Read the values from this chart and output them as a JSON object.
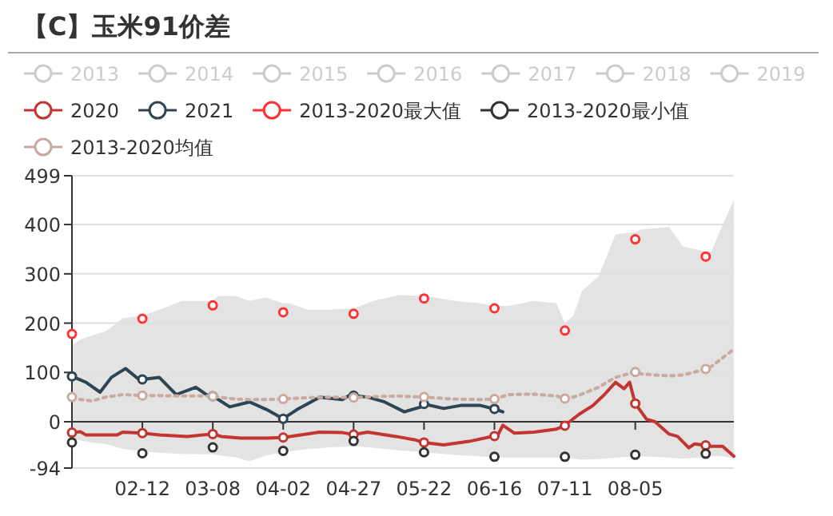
{
  "chart_data": {
    "type": "line",
    "title": "【C】玉米91价差",
    "legend": "top",
    "grid": "y",
    "xlim": [
      "--01-18",
      "--09-09"
    ],
    "xticks": [
      {
        "value": "--02-12",
        "label": "02-12"
      },
      {
        "value": "--03-08",
        "label": "03-08"
      },
      {
        "value": "--04-02",
        "label": "04-02"
      },
      {
        "value": "--04-27",
        "label": "04-27"
      },
      {
        "value": "--05-22",
        "label": "05-22"
      },
      {
        "value": "--06-16",
        "label": "06-16"
      },
      {
        "value": "--07-11",
        "label": "07-11"
      },
      {
        "value": "--08-05",
        "label": "08-05"
      }
    ],
    "ylim": [
      -94,
      499
    ],
    "yticks": [
      -94,
      0,
      100,
      200,
      300,
      400,
      499
    ],
    "series": [
      {
        "name": "2013",
        "color": "#cccccc"
      },
      {
        "name": "2014",
        "color": "#cccccc"
      },
      {
        "name": "2015",
        "color": "#cccccc"
      },
      {
        "name": "2016",
        "color": "#cccccc"
      },
      {
        "name": "2017",
        "color": "#cccccc"
      },
      {
        "name": "2018",
        "color": "#cccccc"
      },
      {
        "name": "2019",
        "color": "#cccccc"
      },
      {
        "name": "2020",
        "color": "#c23531",
        "x": [
          "--01-18",
          "--01-21",
          "--01-23",
          "--02-03",
          "--02-05",
          "--02-12",
          "--02-18",
          "--02-28",
          "--03-08",
          "--03-11",
          "--03-18",
          "--03-27",
          "--04-02",
          "--04-15",
          "--04-23",
          "--04-27",
          "--05-02",
          "--05-12",
          "--05-19",
          "--05-22",
          "--05-29",
          "--06-07",
          "--06-16",
          "--06-17",
          "--06-19",
          "--06-23",
          "--06-30",
          "--07-08",
          "--07-11",
          "--07-12",
          "--07-16",
          "--07-21",
          "--07-25",
          "--07-29",
          "--08-01",
          "--08-03",
          "--08-05",
          "--08-09",
          "--08-12",
          "--08-17",
          "--08-20",
          "--08-24",
          "--08-26",
          "--08-30",
          "--09-01",
          "--09-05",
          "--09-09"
        ],
        "values": [
          -22,
          -20,
          -27,
          -27,
          -21,
          -23,
          -27,
          -30,
          -25,
          -30,
          -33,
          -33,
          -32,
          -21,
          -22,
          -26,
          -21,
          -30,
          -37,
          -42,
          -47,
          -40,
          -29,
          -30,
          -7,
          -23,
          -21,
          -15,
          -8,
          -3,
          15,
          33,
          55,
          80,
          67,
          80,
          37,
          5,
          0,
          -25,
          -30,
          -53,
          -45,
          -48,
          -50,
          -50,
          -70
        ]
      },
      {
        "name": "2021",
        "color": "#2f4554",
        "x": [
          "--01-18",
          "--01-23",
          "--01-28",
          "--02-01",
          "--02-06",
          "--02-11",
          "--02-12",
          "--02-18",
          "--02-24",
          "--03-02",
          "--03-07",
          "--03-08",
          "--03-14",
          "--03-21",
          "--03-27",
          "--04-02",
          "--04-07",
          "--04-15",
          "--04-23",
          "--04-26",
          "--04-27",
          "--05-02",
          "--05-08",
          "--05-15",
          "--05-21",
          "--05-22",
          "--05-29",
          "--06-04",
          "--06-11",
          "--06-16",
          "--06-19"
        ],
        "values": [
          92,
          80,
          60,
          90,
          108,
          85,
          86,
          90,
          55,
          70,
          50,
          52,
          30,
          40,
          25,
          6,
          25,
          50,
          45,
          55,
          53,
          50,
          40,
          20,
          30,
          36,
          27,
          33,
          33,
          26,
          20
        ]
      },
      {
        "name": "2013-2020最大值",
        "type": "scatter",
        "marker": "circle",
        "color": "#ff3333",
        "x": [
          "--01-18",
          "--02-12",
          "--03-08",
          "--04-02",
          "--04-27",
          "--05-22",
          "--06-16",
          "--07-11",
          "--08-05",
          "--08-30"
        ],
        "values": [
          178,
          209,
          236,
          222,
          219,
          250,
          230,
          185,
          370,
          335
        ]
      },
      {
        "name": "2013-2020最小值",
        "type": "scatter",
        "marker": "circle",
        "color": "#333333",
        "x": [
          "--01-18",
          "--02-12",
          "--03-08",
          "--04-02",
          "--04-27",
          "--05-22",
          "--06-16",
          "--07-11",
          "--08-05",
          "--08-30"
        ],
        "values": [
          -42,
          -64,
          -52,
          -59,
          -39,
          -62,
          -71,
          -71,
          -67,
          -65
        ]
      },
      {
        "name": "2013-2020均值",
        "color": "#c9aaa2",
        "line_style": "dotted",
        "x": [
          "--01-18",
          "--01-21",
          "--01-25",
          "--01-30",
          "--02-05",
          "--02-12",
          "--02-18",
          "--02-26",
          "--03-04",
          "--03-08",
          "--03-10",
          "--03-16",
          "--03-21",
          "--03-27",
          "--04-02",
          "--04-04",
          "--04-11",
          "--04-19",
          "--04-27",
          "--05-04",
          "--05-13",
          "--05-22",
          "--06-02",
          "--06-11",
          "--06-16",
          "--06-21",
          "--06-30",
          "--07-08",
          "--07-11",
          "--07-14",
          "--07-17",
          "--07-23",
          "--07-29",
          "--08-05",
          "--08-07",
          "--08-17",
          "--08-22",
          "--08-30",
          "--09-01",
          "--09-05",
          "--09-09"
        ],
        "values": [
          50,
          45,
          42,
          50,
          55,
          53,
          53,
          52,
          52,
          52,
          50,
          46,
          45,
          45,
          46,
          47,
          49,
          50,
          49,
          51,
          52,
          50,
          46,
          45,
          46,
          55,
          56,
          52,
          47,
          50,
          56,
          70,
          90,
          101,
          97,
          93,
          95,
          107,
          112,
          130,
          147
        ],
        "lower": [
          -35,
          -38,
          -42,
          -45,
          -55,
          -60,
          -63,
          -65,
          -66,
          -66,
          -68,
          -72,
          -80,
          -68,
          -62,
          -60,
          -55,
          -52,
          -50,
          -53,
          -58,
          -62,
          -67,
          -70,
          -72,
          -73,
          -73,
          -73,
          -74,
          -75,
          -77,
          -76,
          -73,
          -70,
          -70,
          -73,
          -75,
          -72,
          -70,
          -70,
          -75
        ],
        "upper": [
          155,
          167,
          175,
          183,
          210,
          215,
          227,
          245,
          245,
          245,
          255,
          255,
          245,
          252,
          240,
          240,
          227,
          227,
          230,
          245,
          257,
          255,
          245,
          240,
          235,
          235,
          245,
          240,
          200,
          215,
          265,
          295,
          380,
          385,
          390,
          395,
          355,
          345,
          345,
          400,
          450
        ]
      }
    ]
  }
}
